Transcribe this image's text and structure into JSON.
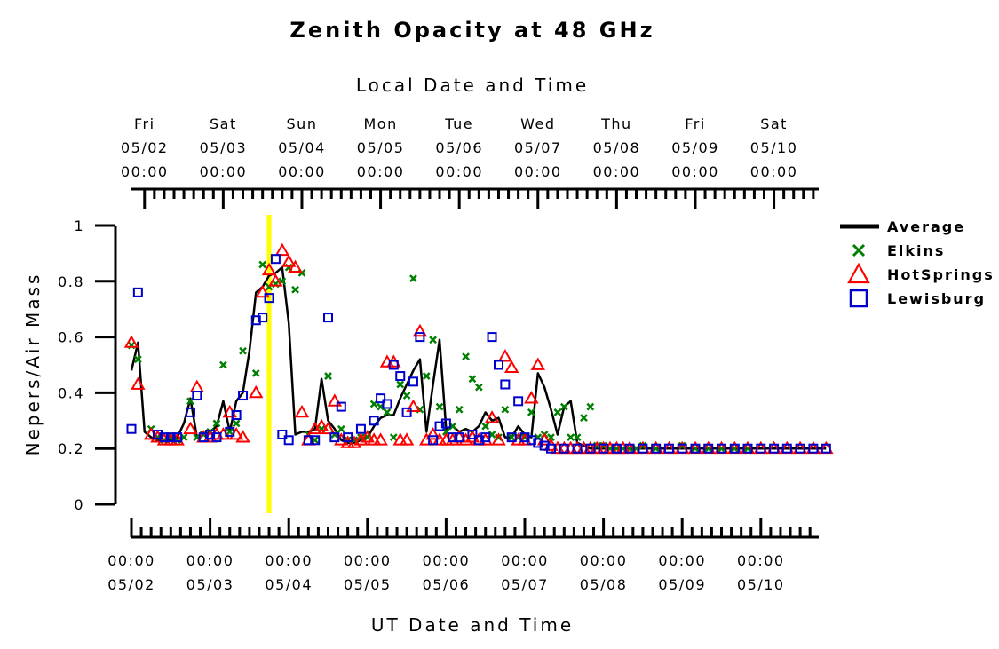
{
  "chart_data": {
    "type": "scatter",
    "title": "Zenith Opacity at 48 GHz",
    "xlabel_bottom": "UT Date and Time",
    "xlabel_top": "Local Date and Time",
    "ylabel": "Nepers/Air Mass",
    "x_unit": "days since 05/02 00:00 UT",
    "xlim": [
      0,
      8.83
    ],
    "ylim": [
      0,
      1
    ],
    "yticks": [
      "0",
      "0.2",
      "0.4",
      "0.6",
      "0.8",
      "1"
    ],
    "yticks_values": [
      0,
      0.2,
      0.4,
      0.6,
      0.8,
      1
    ],
    "bottom_ticks": [
      {
        "x": 0,
        "time": "00:00",
        "date": "05/02"
      },
      {
        "x": 1,
        "time": "00:00",
        "date": "05/03"
      },
      {
        "x": 2,
        "time": "00:00",
        "date": "05/04"
      },
      {
        "x": 3,
        "time": "00:00",
        "date": "05/05"
      },
      {
        "x": 4,
        "time": "00:00",
        "date": "05/06"
      },
      {
        "x": 5,
        "time": "00:00",
        "date": "05/07"
      },
      {
        "x": 6,
        "time": "00:00",
        "date": "05/08"
      },
      {
        "x": 7,
        "time": "00:00",
        "date": "05/09"
      },
      {
        "x": 8,
        "time": "00:00",
        "date": "05/10"
      }
    ],
    "top_ticks": [
      {
        "x": 0.167,
        "day": "Fri",
        "date": "05/02",
        "time": "00:00"
      },
      {
        "x": 1.167,
        "day": "Sat",
        "date": "05/03",
        "time": "00:00"
      },
      {
        "x": 2.167,
        "day": "Sun",
        "date": "05/04",
        "time": "00:00"
      },
      {
        "x": 3.167,
        "day": "Mon",
        "date": "05/05",
        "time": "00:00"
      },
      {
        "x": 4.167,
        "day": "Tue",
        "date": "05/06",
        "time": "00:00"
      },
      {
        "x": 5.167,
        "day": "Wed",
        "date": "05/07",
        "time": "00:00"
      },
      {
        "x": 6.167,
        "day": "Thu",
        "date": "05/08",
        "time": "00:00"
      },
      {
        "x": 7.167,
        "day": "Fri",
        "date": "05/09",
        "time": "00:00"
      },
      {
        "x": 8.167,
        "day": "Sat",
        "date": "05/10",
        "time": "00:00"
      }
    ],
    "now_marker": {
      "x": 1.75,
      "color": "#ffff00"
    },
    "legend_position": "right",
    "series": [
      {
        "name": "Average",
        "marker": "line",
        "color": "#000000",
        "x": [
          0,
          0.083,
          0.167,
          0.25,
          0.333,
          0.417,
          0.5,
          0.583,
          0.667,
          0.75,
          0.833,
          0.917,
          1.0,
          1.083,
          1.167,
          1.25,
          1.333,
          1.417,
          1.5,
          1.583,
          1.667,
          1.75,
          1.833,
          1.917,
          2.0,
          2.083,
          2.167,
          2.25,
          2.333,
          2.417,
          2.5,
          2.583,
          2.667,
          2.75,
          2.833,
          2.917,
          3.0,
          3.083,
          3.167,
          3.25,
          3.333,
          3.417,
          3.5,
          3.583,
          3.667,
          3.75,
          3.833,
          3.917,
          4.0,
          4.083,
          4.167,
          4.25,
          4.333,
          4.417,
          4.5,
          4.583,
          4.667,
          4.75,
          4.833,
          4.917,
          5.0,
          5.083,
          5.167,
          5.25,
          5.333,
          5.417,
          5.5,
          5.583,
          5.667,
          5.75,
          5.833,
          5.917,
          6.0,
          6.083,
          6.167,
          6.25,
          6.333,
          6.417,
          6.5,
          6.583,
          6.667,
          6.75,
          6.833,
          6.917,
          7.0,
          7.083,
          7.167,
          7.25,
          7.333,
          7.5,
          7.667,
          7.833,
          8.0,
          8.167,
          8.333,
          8.5,
          8.667,
          8.83
        ],
        "y": [
          0.48,
          0.58,
          0.26,
          0.24,
          0.23,
          0.23,
          0.23,
          0.24,
          0.29,
          0.38,
          0.24,
          0.25,
          0.26,
          0.28,
          0.37,
          0.26,
          0.37,
          0.4,
          0.55,
          0.76,
          0.78,
          0.82,
          0.83,
          0.85,
          0.65,
          0.25,
          0.26,
          0.26,
          0.27,
          0.45,
          0.3,
          0.27,
          0.23,
          0.22,
          0.22,
          0.23,
          0.24,
          0.28,
          0.31,
          0.32,
          0.32,
          0.38,
          0.43,
          0.48,
          0.52,
          0.26,
          0.43,
          0.59,
          0.27,
          0.28,
          0.26,
          0.27,
          0.26,
          0.28,
          0.33,
          0.3,
          0.31,
          0.24,
          0.24,
          0.28,
          0.25,
          0.24,
          0.47,
          0.42,
          0.34,
          0.25,
          0.35,
          0.37,
          0.22,
          0.21,
          0.2,
          0.2,
          0.2,
          0.2,
          0.2,
          0.2,
          0.2,
          0.2,
          0.2,
          0.2,
          0.2,
          0.2,
          0.2,
          0.2,
          0.2,
          0.2,
          0.2,
          0.2,
          0.2,
          0.2,
          0.2,
          0.2,
          0.2,
          0.2,
          0.2,
          0.2,
          0.2,
          0.2
        ]
      },
      {
        "name": "Elkins",
        "marker": "x",
        "color": "#008000",
        "x": [
          0,
          0.083,
          0.25,
          0.333,
          0.417,
          0.5,
          0.583,
          0.667,
          0.75,
          0.833,
          0.917,
          1.0,
          1.083,
          1.167,
          1.25,
          1.333,
          1.417,
          1.583,
          1.667,
          1.75,
          1.833,
          1.917,
          2.0,
          2.083,
          2.167,
          2.25,
          2.333,
          2.417,
          2.5,
          2.583,
          2.667,
          2.75,
          2.833,
          2.917,
          3.0,
          3.083,
          3.167,
          3.25,
          3.333,
          3.417,
          3.5,
          3.583,
          3.667,
          3.75,
          3.833,
          3.917,
          4.0,
          4.083,
          4.167,
          4.25,
          4.333,
          4.417,
          4.5,
          4.583,
          4.667,
          4.75,
          4.833,
          4.917,
          5.0,
          5.083,
          5.167,
          5.25,
          5.333,
          5.417,
          5.5,
          5.583,
          5.667,
          5.75,
          5.833,
          5.917,
          6.0,
          6.083,
          6.167,
          6.25,
          6.333,
          6.417,
          6.5,
          6.667,
          7.0,
          7.167,
          7.333,
          7.5,
          7.667,
          7.833
        ],
        "y": [
          0.57,
          0.52,
          0.27,
          0.24,
          0.23,
          0.24,
          0.23,
          0.24,
          0.37,
          0.24,
          0.25,
          0.26,
          0.29,
          0.5,
          0.26,
          0.29,
          0.55,
          0.47,
          0.86,
          0.78,
          0.79,
          0.8,
          0.85,
          0.77,
          0.83,
          0.25,
          0.23,
          0.27,
          0.46,
          0.25,
          0.27,
          0.23,
          0.23,
          0.24,
          0.24,
          0.36,
          0.35,
          0.33,
          0.24,
          0.43,
          0.39,
          0.81,
          0.34,
          0.46,
          0.59,
          0.35,
          0.26,
          0.28,
          0.34,
          0.53,
          0.45,
          0.42,
          0.28,
          0.25,
          0.24,
          0.34,
          0.24,
          0.24,
          0.24,
          0.33,
          0.24,
          0.25,
          0.24,
          0.33,
          0.35,
          0.24,
          0.24,
          0.31,
          0.35,
          0.21,
          0.21,
          0.2,
          0.2,
          0.2,
          0.2,
          0.2,
          0.21,
          0.2,
          0.21,
          0.2,
          0.2,
          0.2,
          0.2,
          0.2
        ]
      },
      {
        "name": "HotSprings",
        "marker": "triangle",
        "color": "#ff0000",
        "x": [
          0,
          0.083,
          0.25,
          0.333,
          0.417,
          0.5,
          0.583,
          0.75,
          0.833,
          0.917,
          1.0,
          1.083,
          1.167,
          1.25,
          1.333,
          1.417,
          1.583,
          1.667,
          1.75,
          1.833,
          1.917,
          2.0,
          2.083,
          2.167,
          2.25,
          2.333,
          2.417,
          2.5,
          2.583,
          2.667,
          2.75,
          2.833,
          2.917,
          3.0,
          3.083,
          3.167,
          3.25,
          3.333,
          3.417,
          3.5,
          3.583,
          3.667,
          3.75,
          3.833,
          3.917,
          4.0,
          4.083,
          4.167,
          4.25,
          4.333,
          4.417,
          4.5,
          4.583,
          4.667,
          4.75,
          4.833,
          4.917,
          5.0,
          5.083,
          5.167,
          5.25,
          5.333,
          5.417,
          5.5,
          5.583,
          5.667,
          5.75,
          5.833,
          5.917,
          6.0,
          6.083,
          6.167,
          6.25,
          6.333,
          6.5,
          6.667,
          6.833,
          7.0,
          7.167,
          7.333,
          7.5,
          7.667,
          7.833,
          8.0,
          8.167,
          8.333,
          8.5,
          8.667,
          8.83
        ],
        "y": [
          0.58,
          0.43,
          0.25,
          0.24,
          0.23,
          0.23,
          0.23,
          0.27,
          0.42,
          0.24,
          0.24,
          0.25,
          0.25,
          0.33,
          0.25,
          0.24,
          0.4,
          0.76,
          0.84,
          0.8,
          0.91,
          0.87,
          0.85,
          0.33,
          0.23,
          0.27,
          0.28,
          0.27,
          0.37,
          0.23,
          0.22,
          0.22,
          0.23,
          0.24,
          0.23,
          0.23,
          0.51,
          0.51,
          0.23,
          0.23,
          0.35,
          0.62,
          0.23,
          0.25,
          0.23,
          0.23,
          0.23,
          0.24,
          0.23,
          0.24,
          0.23,
          0.23,
          0.31,
          0.23,
          0.53,
          0.49,
          0.23,
          0.23,
          0.38,
          0.5,
          0.23,
          0.21,
          0.2,
          0.2,
          0.2,
          0.2,
          0.2,
          0.2,
          0.2,
          0.2,
          0.2,
          0.2,
          0.2,
          0.2,
          0.2,
          0.2,
          0.2,
          0.2,
          0.2,
          0.2,
          0.2,
          0.2,
          0.2,
          0.2,
          0.2,
          0.2,
          0.2,
          0.2,
          0.2
        ]
      },
      {
        "name": "Lewisburg",
        "marker": "square",
        "color": "#0000cc",
        "x": [
          0,
          0.083,
          0.333,
          0.417,
          0.5,
          0.583,
          0.75,
          0.833,
          0.917,
          1.0,
          1.083,
          1.25,
          1.333,
          1.417,
          1.583,
          1.667,
          1.75,
          1.833,
          1.917,
          2.0,
          2.25,
          2.333,
          2.5,
          2.583,
          2.667,
          2.75,
          2.917,
          3.083,
          3.167,
          3.25,
          3.333,
          3.417,
          3.5,
          3.583,
          3.667,
          3.833,
          3.917,
          4.0,
          4.083,
          4.167,
          4.333,
          4.417,
          4.5,
          4.583,
          4.667,
          4.75,
          4.833,
          4.917,
          5.0,
          5.083,
          5.167,
          5.25,
          5.333,
          5.5,
          5.667,
          5.833,
          6.0,
          6.167,
          6.333,
          6.5,
          6.667,
          6.833,
          7.0,
          7.167,
          7.333,
          7.5,
          7.667,
          7.833,
          8.0,
          8.167,
          8.333,
          8.5,
          8.667,
          8.83
        ],
        "y": [
          0.27,
          0.76,
          0.25,
          0.24,
          0.24,
          0.24,
          0.33,
          0.39,
          0.24,
          0.25,
          0.24,
          0.26,
          0.32,
          0.39,
          0.66,
          0.67,
          0.74,
          0.88,
          0.25,
          0.23,
          0.23,
          0.23,
          0.67,
          0.24,
          0.35,
          0.24,
          0.27,
          0.3,
          0.38,
          0.36,
          0.5,
          0.46,
          0.33,
          0.44,
          0.6,
          0.23,
          0.28,
          0.29,
          0.24,
          0.24,
          0.25,
          0.23,
          0.24,
          0.6,
          0.5,
          0.43,
          0.24,
          0.37,
          0.24,
          0.23,
          0.22,
          0.21,
          0.2,
          0.2,
          0.2,
          0.2,
          0.2,
          0.2,
          0.2,
          0.2,
          0.2,
          0.2,
          0.2,
          0.2,
          0.2,
          0.2,
          0.2,
          0.2,
          0.2,
          0.2,
          0.2,
          0.2,
          0.2,
          0.2
        ]
      }
    ]
  }
}
